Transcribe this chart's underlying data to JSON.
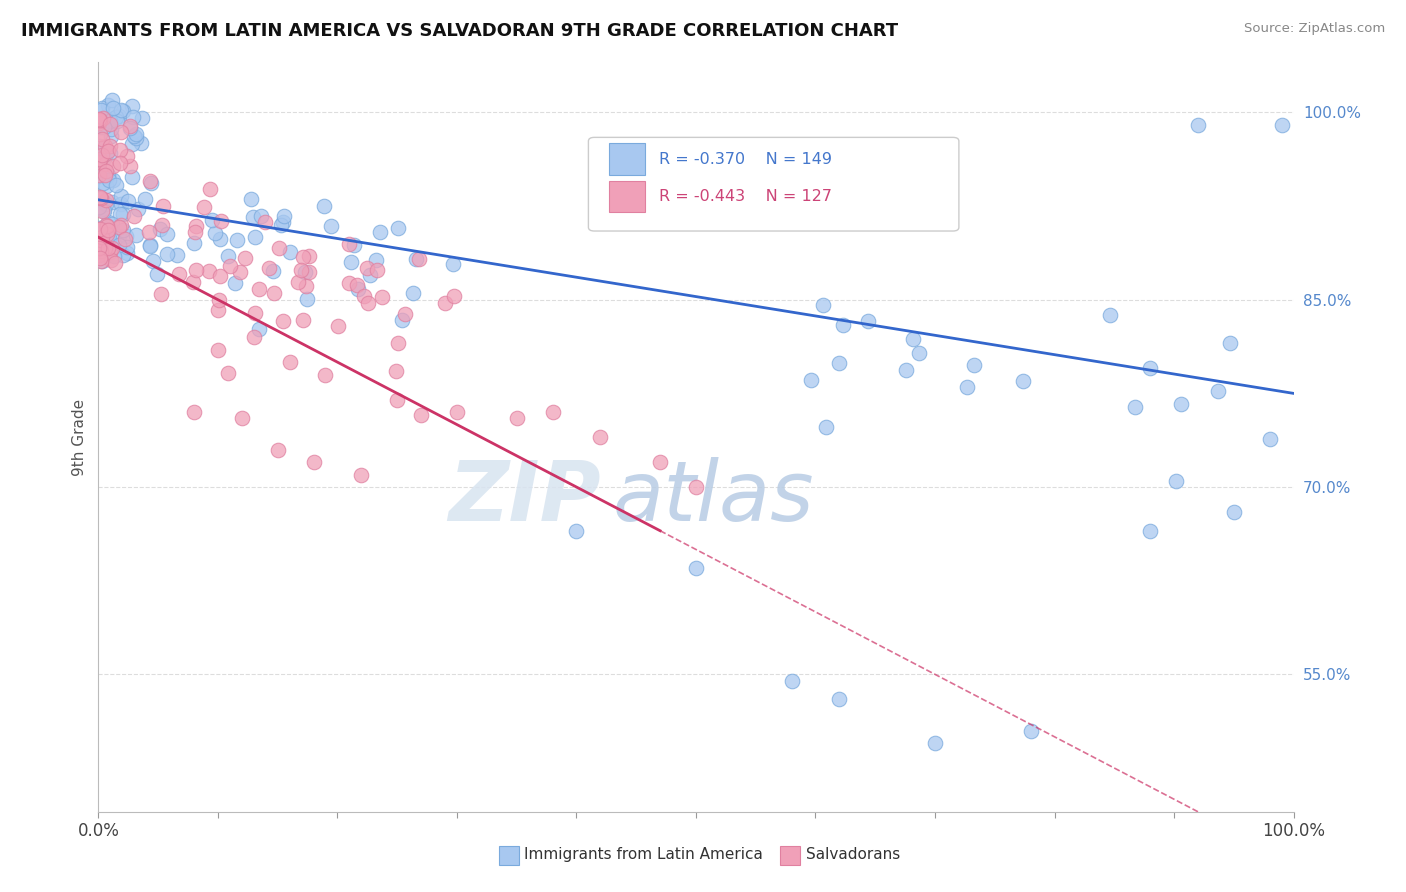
{
  "title": "IMMIGRANTS FROM LATIN AMERICA VS SALVADORAN 9TH GRADE CORRELATION CHART",
  "source": "Source: ZipAtlas.com",
  "ylabel": "9th Grade",
  "legend": {
    "blue_label": "Immigrants from Latin America",
    "pink_label": "Salvadorans",
    "blue_R": "R = -0.370",
    "blue_N": "N = 149",
    "pink_R": "R = -0.443",
    "pink_N": "N = 127"
  },
  "blue_color": "#a8c8f0",
  "pink_color": "#f0a0b8",
  "blue_edge_color": "#7aaadd",
  "pink_edge_color": "#e080a0",
  "blue_line_color": "#3366cc",
  "pink_line_color": "#cc3366",
  "watermark_zip": "#d0d8e8",
  "watermark_atlas": "#b8cce8",
  "background": "#ffffff",
  "grid_color": "#dddddd",
  "ytick_color": "#5588cc",
  "ytick_positions": [
    0.55,
    0.7,
    0.85,
    1.0
  ],
  "ytick_labels": [
    "55.0%",
    "70.0%",
    "85.0%",
    "100.0%"
  ],
  "xlim": [
    0.0,
    1.0
  ],
  "ylim": [
    0.44,
    1.04
  ]
}
